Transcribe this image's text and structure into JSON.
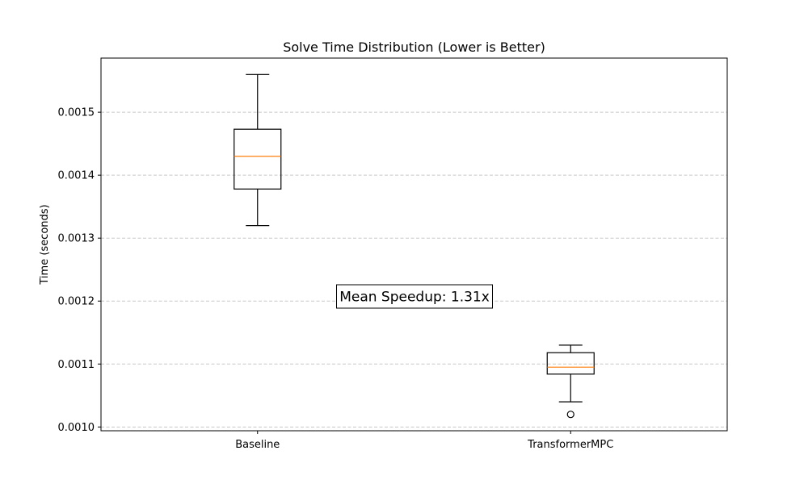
{
  "chart_data": {
    "type": "box",
    "title": "Solve Time Distribution (Lower is Better)",
    "xlabel": "",
    "ylabel": "Time (seconds)",
    "ylim": [
      0.000994,
      0.001586
    ],
    "yticks": [
      0.001,
      0.0011,
      0.0012,
      0.0013,
      0.0014,
      0.0015
    ],
    "ytick_labels": [
      "0.0010",
      "0.0011",
      "0.0012",
      "0.0013",
      "0.0014",
      "0.0015"
    ],
    "grid": "y, dashed",
    "categories": [
      "Baseline",
      "TransformerMPC"
    ],
    "boxes": [
      {
        "label": "Baseline",
        "whisker_low": 0.00132,
        "q1": 0.001378,
        "median": 0.00143,
        "q3": 0.001473,
        "whisker_high": 0.00156,
        "outliers": []
      },
      {
        "label": "TransformerMPC",
        "whisker_low": 0.00104,
        "q1": 0.001084,
        "median": 0.001095,
        "q3": 0.001118,
        "whisker_high": 0.00113,
        "outliers": [
          0.00102
        ]
      }
    ],
    "annotation": "Mean Speedup: 1.31x",
    "colors": {
      "box": "#000000",
      "median": "#ff7f0e",
      "grid": "#c8c8c8"
    }
  }
}
